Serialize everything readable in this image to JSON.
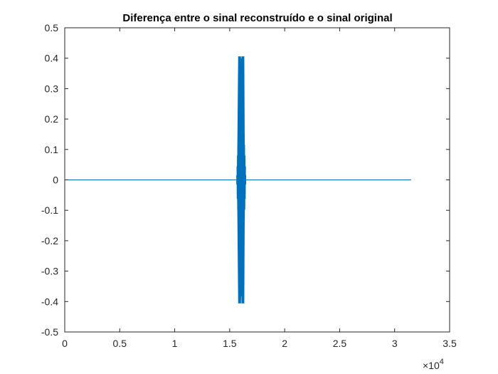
{
  "chart_data": {
    "type": "line",
    "title": "Diferença entre o sinal reconstruído e o sinal original",
    "xlabel": "",
    "ylabel": "",
    "xlim": [
      0,
      35000
    ],
    "ylim": [
      -0.5,
      0.5
    ],
    "x_ticks": [
      0,
      5000,
      10000,
      15000,
      20000,
      25000,
      30000,
      35000
    ],
    "x_tick_labels": [
      "0",
      "0.5",
      "1",
      "1.5",
      "2",
      "2.5",
      "3",
      "3.5"
    ],
    "x_exponent_label": {
      "base": "×10",
      "exponent": "4"
    },
    "y_ticks": [
      0.5,
      0.4,
      0.3,
      0.2,
      0.1,
      0,
      -0.1,
      -0.2,
      -0.3,
      -0.4,
      -0.5
    ],
    "y_tick_labels": [
      "0.5",
      "0.4",
      "0.3",
      "0.2",
      "0.1",
      "0",
      "-0.1",
      "-0.2",
      "-0.3",
      "-0.4",
      "-0.5"
    ],
    "grid": false,
    "box": true,
    "colors": {
      "series": "#0072BD",
      "axes": "#262626",
      "background": "#ffffff"
    },
    "series": [
      {
        "x_range": [
          0,
          31500
        ],
        "baseline": 0,
        "burst": {
          "x_range": [
            15600,
            16500
          ],
          "peaks": [
            {
              "x": 15900,
              "y": 0.405
            },
            {
              "x": 16200,
              "y": 0.405
            },
            {
              "x": 15900,
              "y": -0.405
            },
            {
              "x": 16200,
              "y": -0.405
            }
          ],
          "dense_band": [
            -0.015,
            0.015
          ]
        }
      }
    ]
  }
}
